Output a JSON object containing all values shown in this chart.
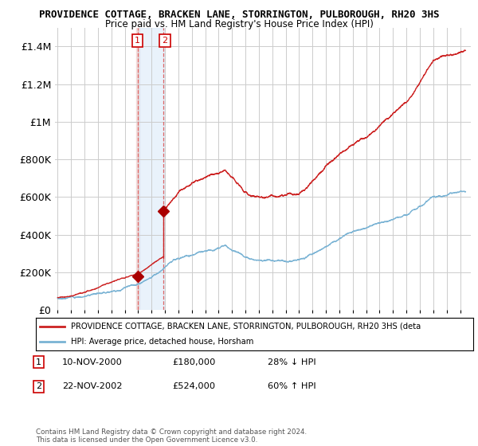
{
  "title1": "PROVIDENCE COTTAGE, BRACKEN LANE, STORRINGTON, PULBOROUGH, RH20 3HS",
  "title2": "Price paid vs. HM Land Registry's House Price Index (HPI)",
  "ylim": [
    0,
    1500000
  ],
  "yticks": [
    0,
    200000,
    400000,
    600000,
    800000,
    1000000,
    1200000,
    1400000
  ],
  "ytick_labels": [
    "£0",
    "£200K",
    "£400K",
    "£600K",
    "£800K",
    "£1M",
    "£1.2M",
    "£1.4M"
  ],
  "sale1_date_num": 2001.0,
  "sale1_price": 180000,
  "sale2_date_num": 2002.9,
  "sale2_price": 524000,
  "hpi_color": "#7ab3d4",
  "price_color": "#cc2222",
  "sale_dot_color": "#aa0000",
  "vline1_color": "#dd6666",
  "vline2_color": "#dd6666",
  "shade1_color": "#f0d8d8",
  "shade2_color": "#d8e8f8",
  "legend_price_label": "PROVIDENCE COTTAGE, BRACKEN LANE, STORRINGTON, PULBOROUGH, RH20 3HS (deta",
  "legend_hpi_label": "HPI: Average price, detached house, Horsham",
  "table_row1": [
    "1",
    "10-NOV-2000",
    "£180,000",
    "28% ↓ HPI"
  ],
  "table_row2": [
    "2",
    "22-NOV-2002",
    "£524,000",
    "60% ↑ HPI"
  ],
  "footer": "Contains HM Land Registry data © Crown copyright and database right 2024.\nThis data is licensed under the Open Government Licence v3.0.",
  "background_color": "#ffffff",
  "grid_color": "#cccccc"
}
